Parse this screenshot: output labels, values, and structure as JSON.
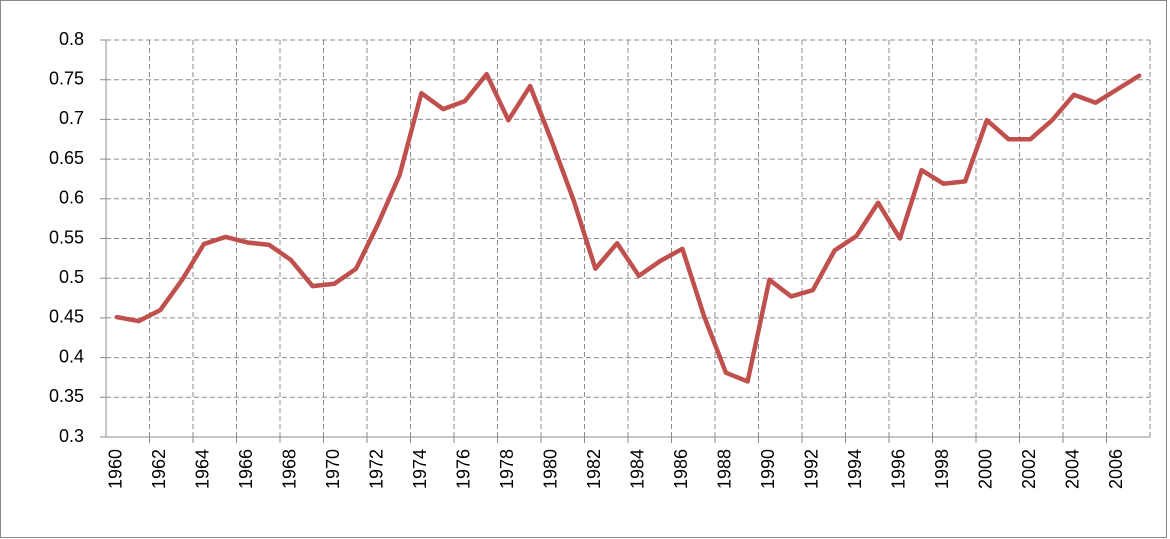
{
  "chart_data": {
    "type": "line",
    "categories": [
      "1960",
      null,
      "1962",
      null,
      "1964",
      null,
      "1966",
      null,
      "1968",
      null,
      "1970",
      null,
      "1972",
      null,
      "1974",
      null,
      "1976",
      null,
      "1978",
      null,
      "1980",
      null,
      "1982",
      null,
      "1984",
      null,
      "1986",
      null,
      "1988",
      null,
      "1990",
      null,
      "1992",
      null,
      "1994",
      null,
      "1996",
      null,
      "1998",
      null,
      "2000",
      null,
      "2002",
      null,
      "2004",
      null,
      "2006",
      null
    ],
    "series": [
      {
        "color": "#c0504d",
        "values": [
          0.451,
          0.446,
          0.46,
          0.498,
          0.543,
          0.552,
          0.545,
          0.542,
          0.523,
          0.49,
          0.493,
          0.512,
          0.568,
          0.63,
          0.733,
          0.713,
          0.723,
          0.757,
          0.699,
          0.742,
          0.672,
          0.598,
          0.512,
          0.544,
          0.503,
          0.522,
          0.537,
          0.452,
          0.381,
          0.37,
          0.498,
          0.477,
          0.485,
          0.535,
          0.553,
          0.595,
          0.55,
          0.636,
          0.619,
          0.622,
          0.699,
          0.675,
          0.675,
          0.699,
          0.731,
          0.721,
          0.738,
          0.755
        ]
      }
    ],
    "ylim": [
      0.3,
      0.8
    ],
    "yticks": [
      0.3,
      0.35,
      0.4,
      0.45,
      0.5,
      0.55,
      0.6,
      0.65,
      0.7,
      0.75,
      0.8
    ],
    "grid": true
  }
}
